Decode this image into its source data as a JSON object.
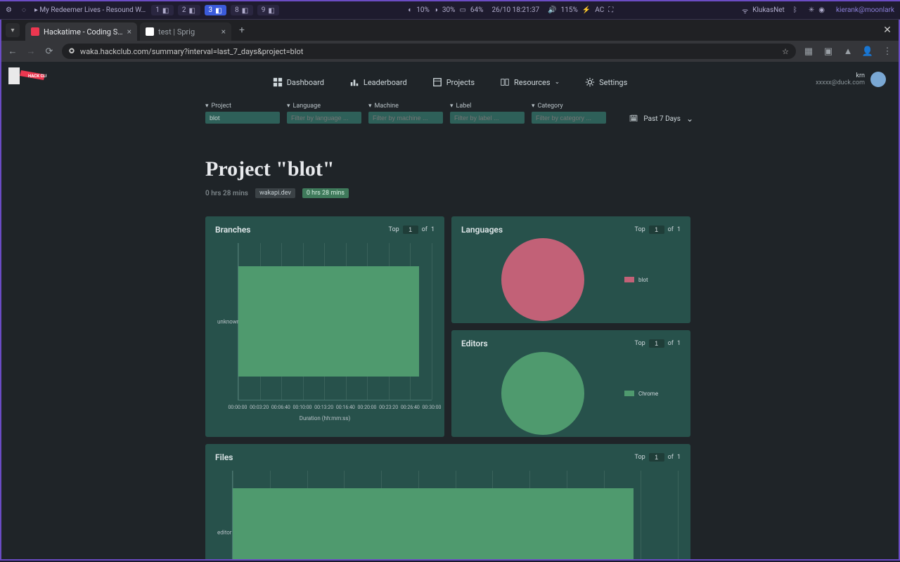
{
  "osbar": {
    "now_playing": "▸ My Redeemer Lives - Resound W…",
    "workspaces": [
      {
        "num": "1",
        "active": false
      },
      {
        "num": "2",
        "active": false
      },
      {
        "num": "3",
        "active": true
      },
      {
        "num": "8",
        "active": false
      },
      {
        "num": "9",
        "active": false
      }
    ],
    "stats": {
      "cpu": "10%",
      "mem": "30%",
      "disk": "64%",
      "datetime": "26/10 18:21:37",
      "vol": "115%",
      "ac": "AC"
    },
    "wifi": "KlukasNet",
    "user": "kierank@moonlark"
  },
  "browser": {
    "tabs": [
      {
        "title": "Hackatime - Coding S…",
        "active": true,
        "favcolor": "#ec3750"
      },
      {
        "title": "test | Sprig",
        "active": false,
        "favcolor": "#ffffff"
      }
    ],
    "url": "waka.hackclub.com/summary?interval=last_7_days&project=blot"
  },
  "nav": {
    "items": [
      "Dashboard",
      "Leaderboard",
      "Projects",
      "Resources",
      "Settings"
    ],
    "user_name": "krn",
    "user_email": "xxxxx@duck.com"
  },
  "filters": [
    {
      "label": "Project",
      "value": "blot",
      "placeholder": ""
    },
    {
      "label": "Language",
      "value": "",
      "placeholder": "Filter by language ..."
    },
    {
      "label": "Machine",
      "value": "",
      "placeholder": "Filter by machine ..."
    },
    {
      "label": "Label",
      "value": "",
      "placeholder": "Filter by label ..."
    },
    {
      "label": "Category",
      "value": "",
      "placeholder": "Filter by category ..."
    }
  ],
  "date_range_label": "Past 7 Days",
  "title": "Project \"blot\"",
  "subtitle_time": "0 hrs 28 mins",
  "badge_grey": "wakapi.dev",
  "badge_green": "0 hrs 28 mins",
  "branches": {
    "title": "Branches",
    "top_label": "Top",
    "top_value": "1",
    "of_label": "of",
    "of_total": "1",
    "y_category": "unknown",
    "bar_value_sec": 1680,
    "x_max_sec": 1800,
    "x_tick_step_sec": 200,
    "x_ticks": [
      "00:00:00",
      "00:03:20",
      "00:06:40",
      "00:10:00",
      "00:13:20",
      "00:16:40",
      "00:20:00",
      "00:23:20",
      "00:26:40",
      "00:30:00"
    ],
    "x_axis_title": "Duration (hh:mm:ss)",
    "bar_color": "#4f9a6e",
    "grid_color": "#3a625b"
  },
  "languages": {
    "title": "Languages",
    "top_label": "Top",
    "top_value": "1",
    "of_label": "of",
    "of_total": "1",
    "slices": [
      {
        "label": "blot",
        "value": 100,
        "color": "#c26177"
      }
    ],
    "pie_diameter": 118
  },
  "editors": {
    "title": "Editors",
    "top_label": "Top",
    "top_value": "1",
    "of_label": "of",
    "of_total": "1",
    "slices": [
      {
        "label": "Chrome",
        "value": 100,
        "color": "#4f9a6e"
      }
    ],
    "pie_diameter": 118
  },
  "files": {
    "title": "Files",
    "top_label": "Top",
    "top_value": "1",
    "of_label": "of",
    "of_total": "1",
    "y_category": "editor",
    "bar_value_pct": 90,
    "grid_count": 12,
    "bar_color": "#4f9a6e"
  },
  "colors": {
    "card_bg": "#27514b",
    "page_bg": "#1f2428"
  }
}
